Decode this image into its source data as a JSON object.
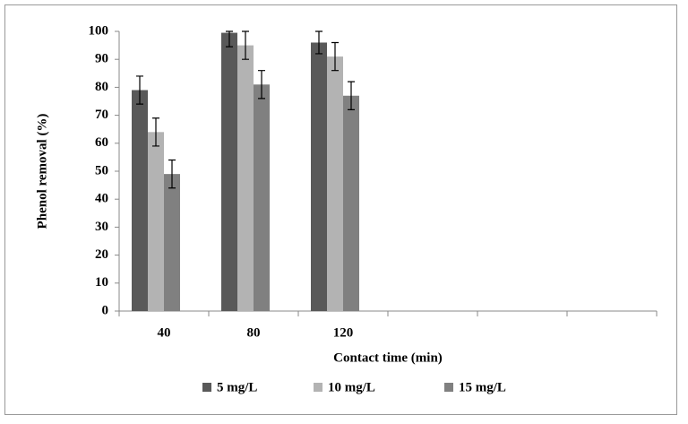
{
  "chart_data": {
    "type": "bar",
    "y_label": "Phenol removal (%)",
    "x_label": "Contact time (min)",
    "categories": [
      "40",
      "80",
      "120",
      null,
      null,
      null
    ],
    "series": [
      {
        "name": "5 mg/L",
        "color": "#595959",
        "values": [
          79,
          99.5,
          96,
          null,
          null,
          null
        ],
        "errors": [
          5,
          5,
          4,
          null,
          null,
          null
        ]
      },
      {
        "name": "10 mg/L",
        "color": "#b3b3b3",
        "values": [
          64,
          95,
          91,
          null,
          null,
          null
        ],
        "errors": [
          5,
          5,
          5,
          null,
          null,
          null
        ]
      },
      {
        "name": "15 mg/L",
        "color": "#808080",
        "values": [
          49,
          81,
          77,
          null,
          null,
          null
        ],
        "errors": [
          5,
          5,
          5,
          null,
          null,
          null
        ]
      }
    ],
    "ylim": [
      0,
      100
    ],
    "yticks": [
      0,
      10,
      20,
      30,
      40,
      50,
      60,
      70,
      80,
      90,
      100
    ],
    "legend": "bottom"
  }
}
